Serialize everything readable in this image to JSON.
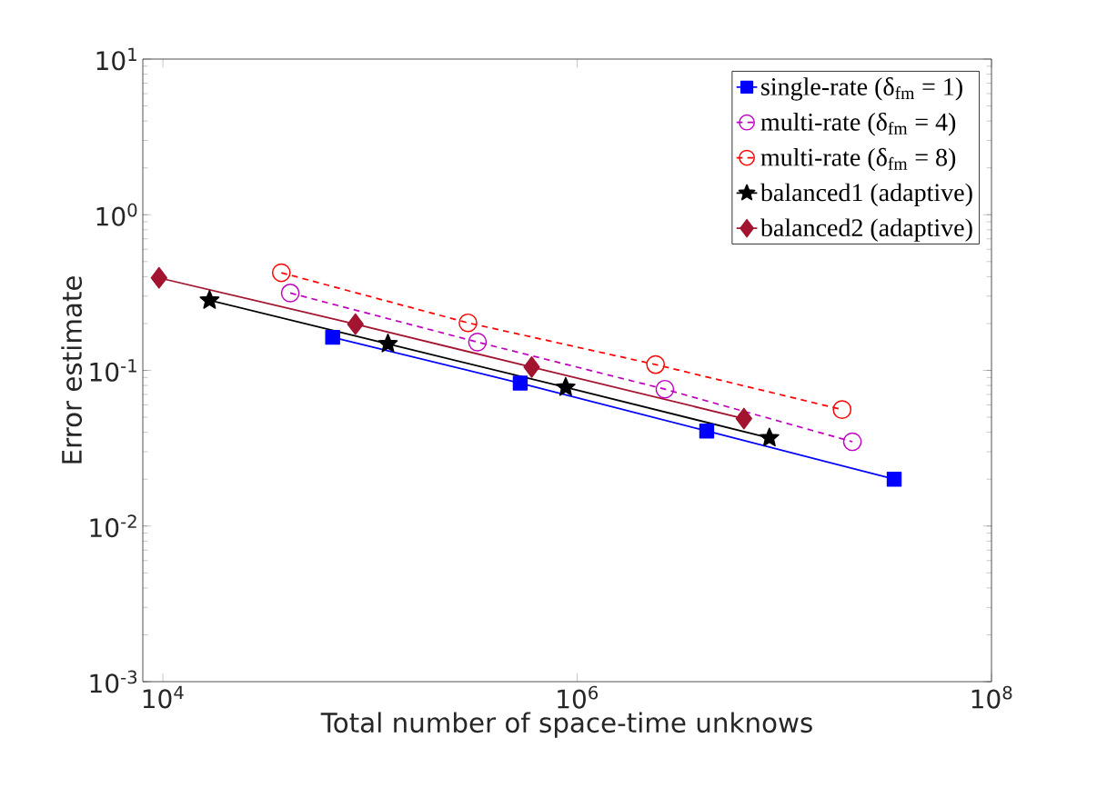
{
  "chart_data": {
    "type": "line",
    "xlabel": "Total number of space-time unknows",
    "ylabel": "Error estimate",
    "log": "xy",
    "legend": "top right",
    "xlim": [
      8000,
      100000000
    ],
    "ylim": [
      0.001,
      10
    ],
    "xticks": [
      {
        "value": 10000,
        "label": "10$^{4}$"
      },
      {
        "value": 1000000,
        "label": "10$^{6}$"
      },
      {
        "value": 100000000,
        "label": "10$^{8}$"
      }
    ],
    "yticks": [
      {
        "value": 0.001,
        "label": "10$^{-3}$"
      },
      {
        "value": 0.01,
        "label": "10$^{-2}$"
      },
      {
        "value": 0.1,
        "label": "10$^{-1}$"
      },
      {
        "value": 1,
        "label": "10$^{0}$"
      },
      {
        "value": 10,
        "label": "10$^{1}$"
      }
    ],
    "series": [
      {
        "name": "single-rate  (δ$_{fm}$ = 1)",
        "color": "#0000ff",
        "marker": "square",
        "line_style": "solid",
        "x": [
          66000,
          531000,
          4220000,
          33900000
        ],
        "values": [
          0.163,
          0.0828,
          0.0408,
          0.02
        ]
      },
      {
        "name": "multi-rate  (δ$_{fm}$ = 4)",
        "color": "#bf00bf",
        "marker": "circle",
        "line_style": "dashed",
        "x": [
          41200,
          330000,
          2650000,
          21300000
        ],
        "values": [
          0.314,
          0.152,
          0.0757,
          0.0348
        ]
      },
      {
        "name": "multi-rate  (δ$_{fm}$ = 8)",
        "color": "#ff0000",
        "marker": "circle",
        "line_style": "dashed",
        "x": [
          37300,
          297000,
          2390000,
          19000000
        ],
        "values": [
          0.424,
          0.202,
          0.109,
          0.056
        ]
      },
      {
        "name": "balanced1  (adaptive)",
        "color": "#000000",
        "marker": "star",
        "line_style": "solid",
        "x": [
          16800,
          122000,
          880000,
          8470000
        ],
        "values": [
          0.282,
          0.148,
          0.0778,
          0.0368
        ]
      },
      {
        "name": "balanced2  (adaptive)",
        "color": "#a2142f",
        "marker": "diamond",
        "line_style": "solid",
        "x": [
          9580,
          85000,
          603000,
          6380000
        ],
        "values": [
          0.393,
          0.198,
          0.105,
          0.049
        ]
      }
    ]
  }
}
